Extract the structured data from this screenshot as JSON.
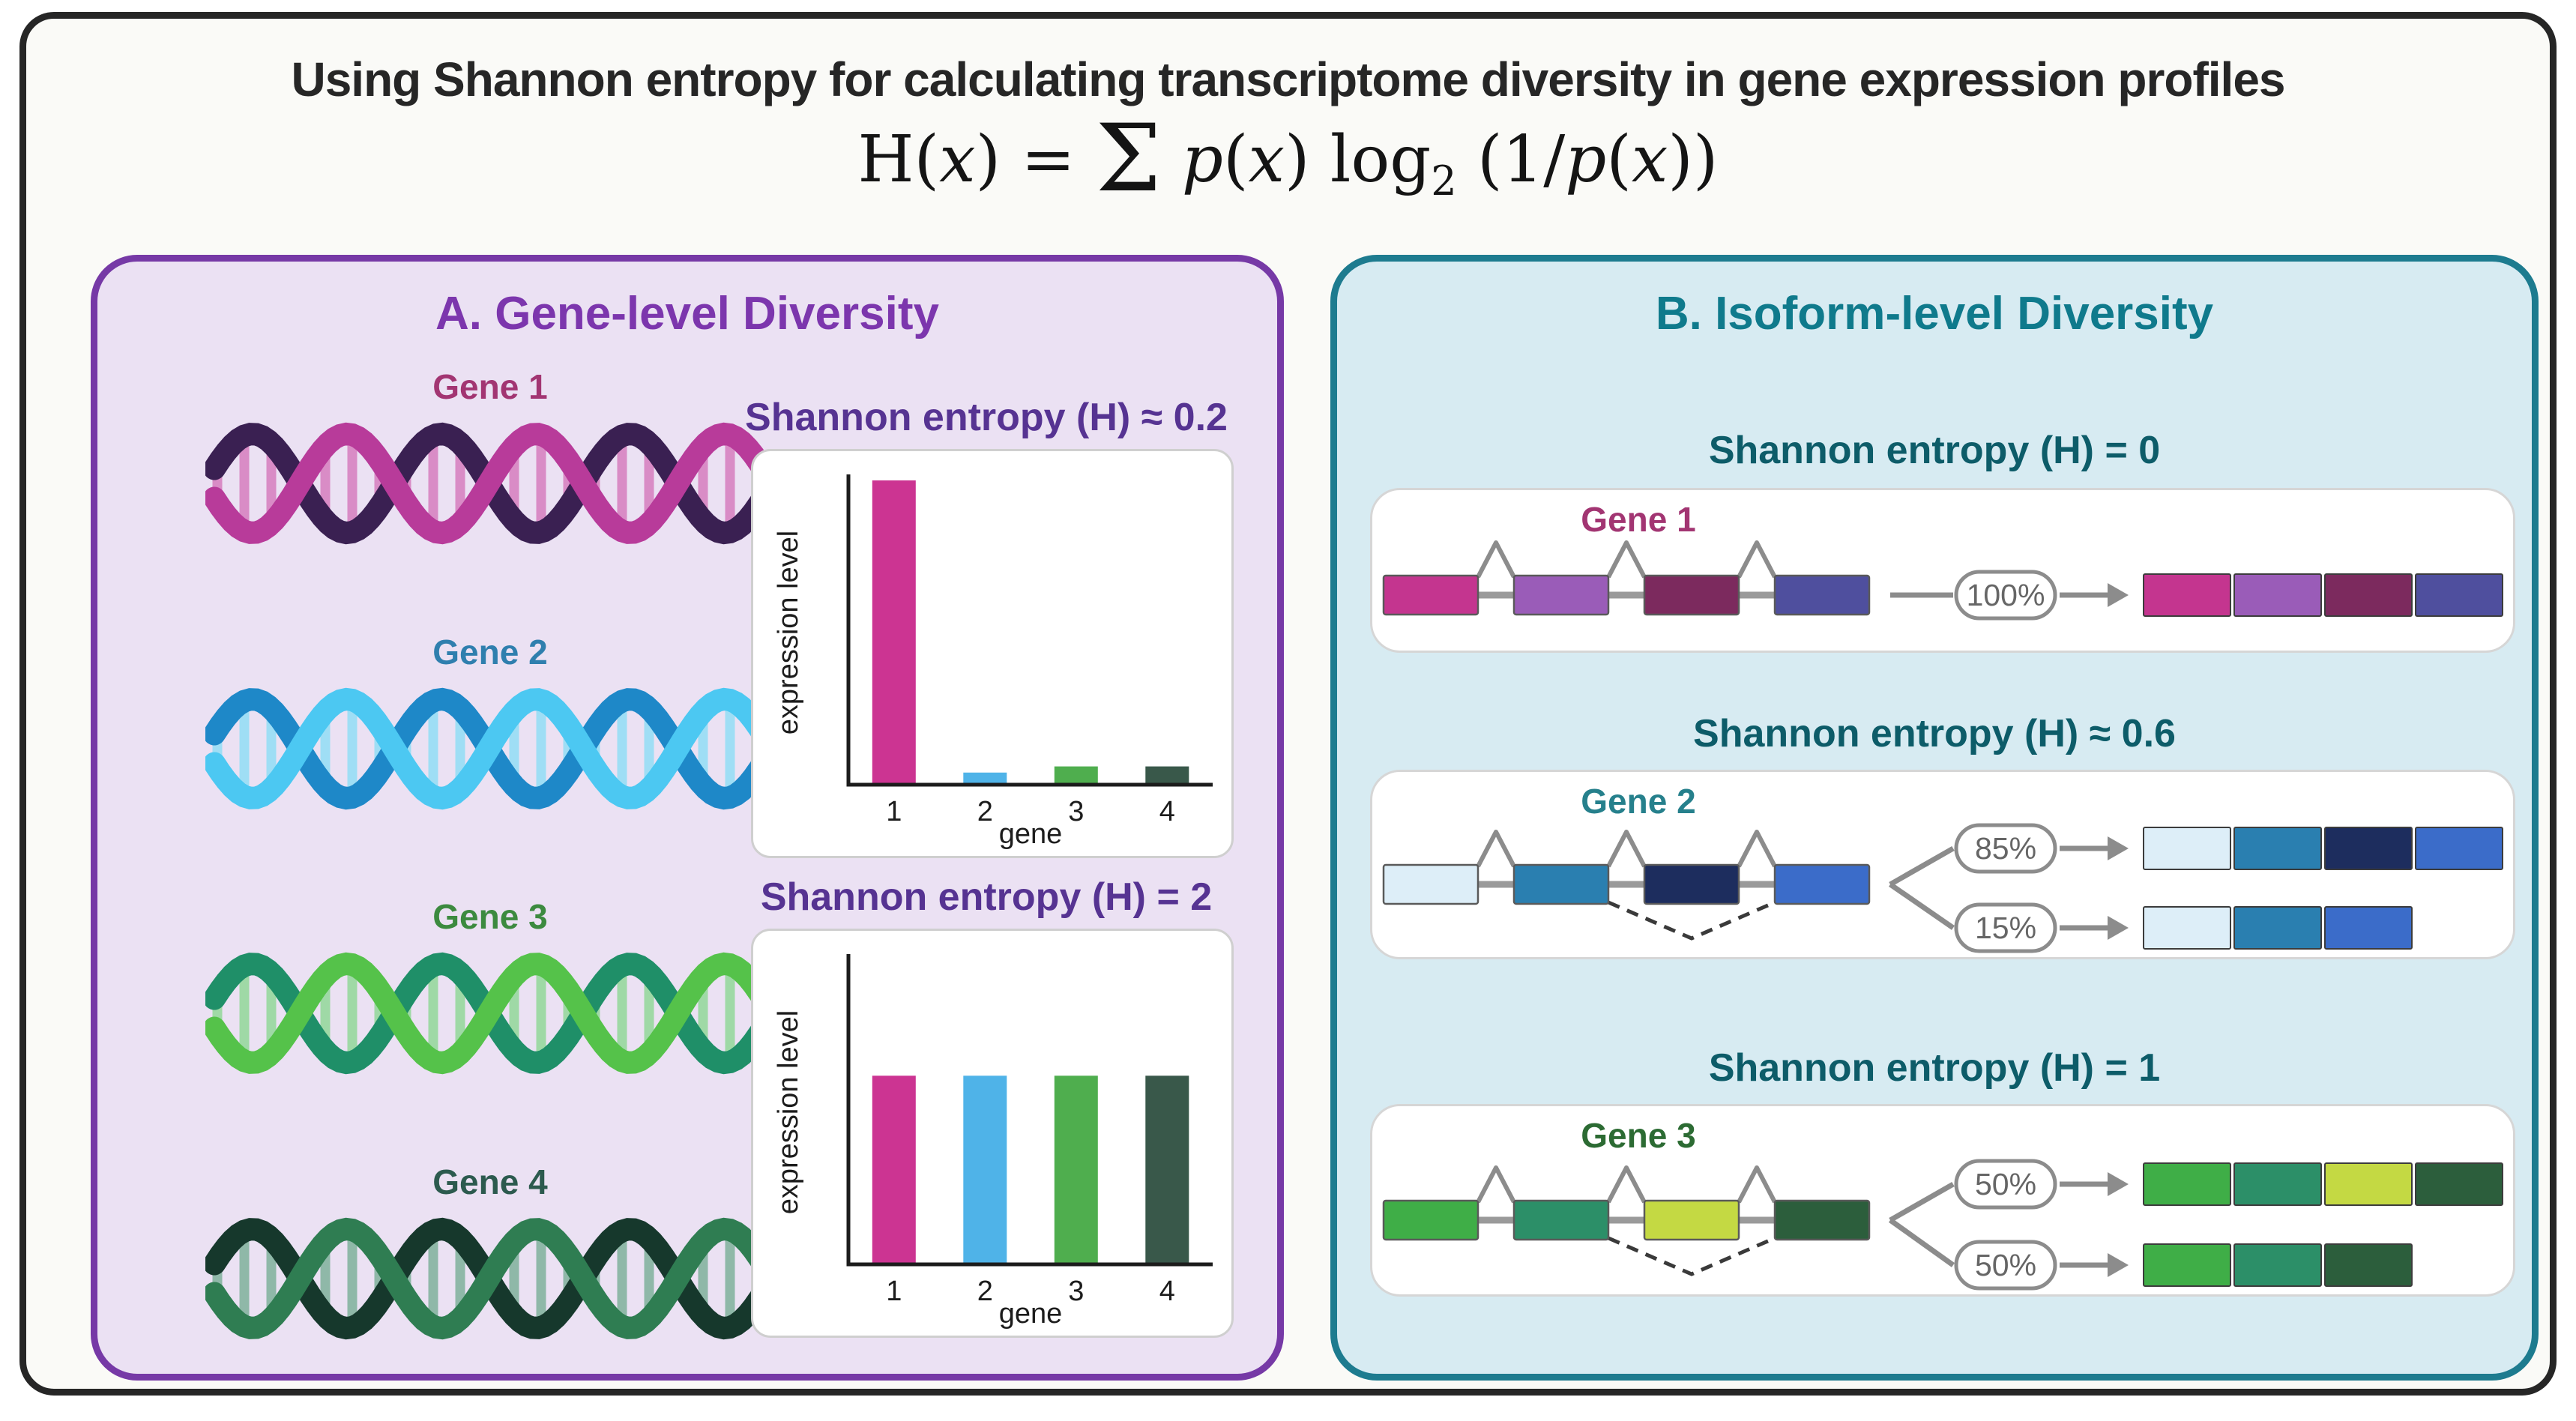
{
  "header": {
    "title": "Using Shannon entropy for calculating transcriptome diversity in gene expression profiles",
    "formula_parts": [
      {
        "t": "H("
      },
      {
        "t": "x",
        "k": "it"
      },
      {
        "t": ") = "
      },
      {
        "t": "Σ",
        "k": "big"
      },
      {
        "t": " "
      },
      {
        "t": "p",
        "k": "it"
      },
      {
        "t": "("
      },
      {
        "t": "x",
        "k": "it"
      },
      {
        "t": ") log"
      },
      {
        "t": "2",
        "k": "sub"
      },
      {
        "t": " (1/",
        "k": ""
      },
      {
        "t": "p",
        "k": "it"
      },
      {
        "t": "("
      },
      {
        "t": "x",
        "k": "it"
      },
      {
        "t": "))"
      }
    ]
  },
  "colors": {
    "card_border": "#262626",
    "panel_a_border": "#7639a6",
    "panel_a_bg": "#ebe1f3",
    "panel_a_title": "#7c36ad",
    "panel_a_chart_title": "#563392",
    "panel_b_border": "#1d7b8f",
    "panel_b_bg": "#d7ebf2",
    "panel_b_title": "#0f7a8c",
    "panel_b_heading": "#0d5c69",
    "arrow_gray": "#8c8c8c"
  },
  "panel_a": {
    "title": "A. Gene-level Diversity",
    "genes": [
      {
        "label": "Gene 1",
        "label_color": "#a23572",
        "strand_light": "#b83b9a",
        "strand_dark": "#3a2052",
        "rung": "#d98cc6"
      },
      {
        "label": "Gene 2",
        "label_color": "#2f7fae",
        "strand_light": "#4cc8f2",
        "strand_dark": "#1e88c8",
        "rung": "#9fdef5"
      },
      {
        "label": "Gene 3",
        "label_color": "#3c8a3f",
        "strand_light": "#55c24a",
        "strand_dark": "#1f8f68",
        "rung": "#9fd9a6"
      },
      {
        "label": "Gene 4",
        "label_color": "#2c5a4e",
        "strand_light": "#2f7d52",
        "strand_dark": "#16382c",
        "rung": "#8fb8a8"
      }
    ]
  },
  "chart_data": [
    {
      "type": "bar",
      "title": "Shannon entropy (H) ≈ 0.2",
      "categories": [
        "1",
        "2",
        "3",
        "4"
      ],
      "values": [
        100,
        4,
        6,
        6
      ],
      "colors": [
        "#cc3492",
        "#4fb3e8",
        "#4fae4e",
        "#39584a"
      ],
      "xlabel": "gene",
      "ylabel": "expression level",
      "ylim": [
        0,
        100
      ],
      "grid": false,
      "legend": "none"
    },
    {
      "type": "bar",
      "title": "Shannon entropy (H) = 2",
      "categories": [
        "1",
        "2",
        "3",
        "4"
      ],
      "values": [
        62,
        62,
        62,
        62
      ],
      "colors": [
        "#cc3492",
        "#4fb3e8",
        "#4fae4e",
        "#39584a"
      ],
      "xlabel": "gene",
      "ylabel": "expression level",
      "ylim": [
        0,
        100
      ],
      "grid": false,
      "legend": "none"
    }
  ],
  "panel_b": {
    "title": "B. Isoform-level Diversity",
    "sections": [
      {
        "entropy_label": "Shannon entropy (H) = 0",
        "gene_label": "Gene 1",
        "gene_label_color": "#a23572",
        "exon_colors": [
          "#c4358f",
          "#9a5cb8",
          "#7c2a5e",
          "#4f4f9e"
        ],
        "skip_exon": null,
        "isoforms": [
          {
            "percent": "100%",
            "exons": [
              0,
              1,
              2,
              3
            ]
          }
        ]
      },
      {
        "entropy_label": "Shannon entropy (H) ≈ 0.6",
        "gene_label": "Gene 2",
        "gene_label_color": "#26808c",
        "exon_colors": [
          "#ddeef8",
          "#2a7fb0",
          "#1d2d5e",
          "#3b6cc9"
        ],
        "skip_exon": 2,
        "isoforms": [
          {
            "percent": "85%",
            "exons": [
              0,
              1,
              2,
              3
            ]
          },
          {
            "percent": "15%",
            "exons": [
              0,
              1,
              3
            ]
          }
        ]
      },
      {
        "entropy_label": "Shannon entropy (H) = 1",
        "gene_label": "Gene 3",
        "gene_label_color": "#2c6b33",
        "exon_colors": [
          "#3fae47",
          "#2c8f68",
          "#c4d943",
          "#2c5e3c"
        ],
        "skip_exon": 2,
        "isoforms": [
          {
            "percent": "50%",
            "exons": [
              0,
              1,
              2,
              3
            ]
          },
          {
            "percent": "50%",
            "exons": [
              0,
              1,
              3
            ]
          }
        ]
      }
    ]
  }
}
